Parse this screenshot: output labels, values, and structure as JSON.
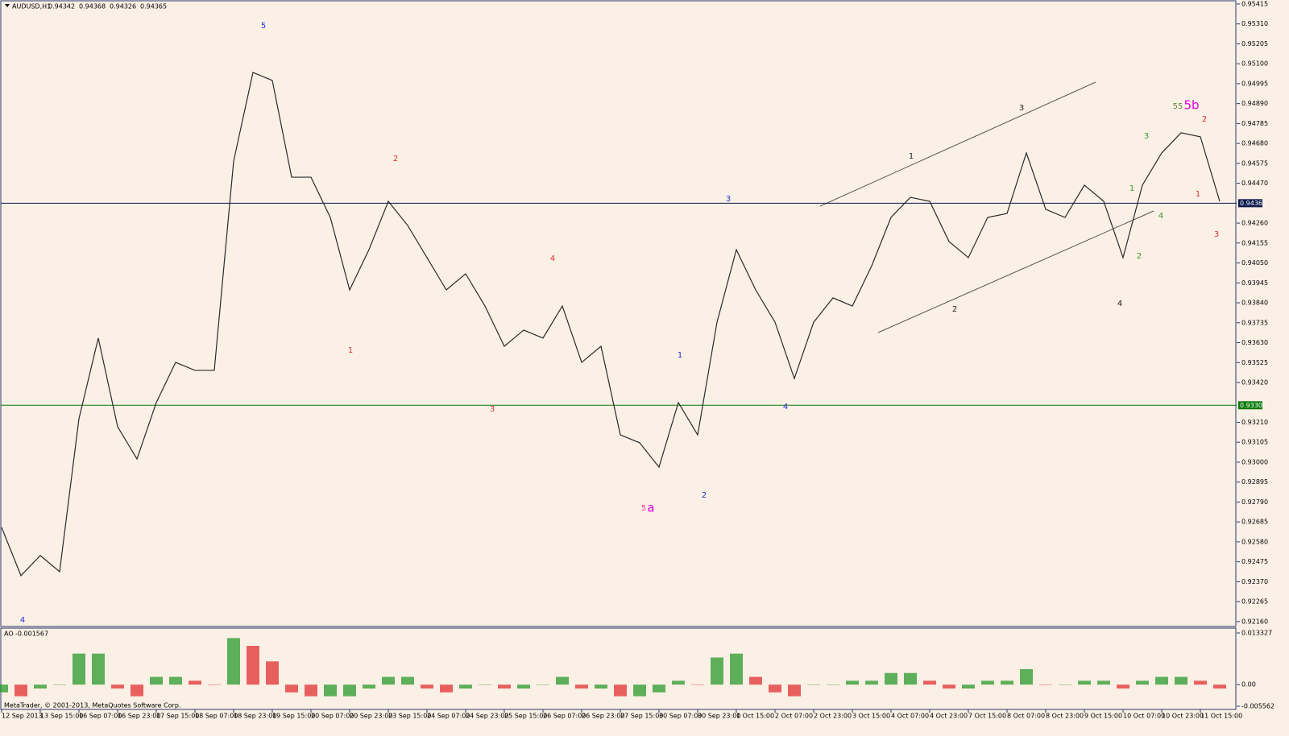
{
  "chart_data": {
    "type": "line",
    "symbol": "AUDUSD,H1",
    "ohlc": [
      0.94342,
      0.94368,
      0.94326,
      0.94365
    ],
    "footer": "MetaTrader, © 2001-2013, MetaQuotes Software Corp.",
    "color": "#2a2a2a",
    "categories": [
      "12 Sep 2013",
      null,
      "13 Sep 15:00",
      null,
      "16 Sep 07:00",
      null,
      "16 Sep 23:00",
      null,
      "17 Sep 15:00",
      null,
      "18 Sep 07:00",
      null,
      "18 Sep 23:00",
      null,
      "19 Sep 15:00",
      null,
      "20 Sep 07:00",
      null,
      "20 Sep 23:00",
      null,
      "23 Sep 15:00",
      null,
      "24 Sep 07:00",
      null,
      "24 Sep 23:00",
      null,
      "25 Sep 15:00",
      null,
      "26 Sep 07:00",
      null,
      "26 Sep 23:00",
      null,
      "27 Sep 15:00",
      null,
      "30 Sep 07:00",
      null,
      "30 Sep 23:00",
      null,
      "1 Oct 15:00",
      null,
      "2 Oct 07:00",
      null,
      "2 Oct 23:00",
      null,
      "3 Oct 15:00",
      null,
      "4 Oct 07:00",
      null,
      "4 Oct 23:00",
      null,
      "7 Oct 15:00",
      null,
      "8 Oct 07:00",
      null,
      "8 Oct 23:00",
      null,
      "9 Oct 15:00",
      null,
      "10 Oct 07:00",
      null,
      "10 Oct 23:00",
      null,
      "11 Oct 15:00",
      null
    ],
    "values": [
      0.92656,
      0.92402,
      0.92508,
      0.92423,
      0.93229,
      0.93654,
      0.93187,
      0.93017,
      0.93314,
      0.93526,
      0.93484,
      0.93484,
      0.94587,
      0.95054,
      0.95012,
      0.94502,
      0.94502,
      0.9429,
      0.93908,
      0.9412,
      0.94375,
      0.94248,
      0.94078,
      0.93908,
      0.93993,
      0.93823,
      0.93611,
      0.93696,
      0.93654,
      0.93823,
      0.93526,
      0.93611,
      0.93144,
      0.93102,
      0.92974,
      0.93314,
      0.93144,
      0.93738,
      0.9412,
      0.93908,
      0.93738,
      0.93441,
      0.93738,
      0.93866,
      0.93823,
      0.94035,
      0.9429,
      0.94396,
      0.94375,
      0.94163,
      0.94078,
      0.9429,
      0.94311,
      0.9463,
      0.94333,
      0.9429,
      0.9446,
      0.94375,
      0.94078,
      0.9446,
      0.9463,
      0.94736,
      0.94715,
      0.94375
    ],
    "ylim": [
      0.92134,
      0.95436
    ],
    "yticks": [
      {
        "value": 0.95415,
        "label": "0.95415"
      },
      {
        "value": 0.9531,
        "label": "0.95310"
      },
      {
        "value": 0.95205,
        "label": "0.95205"
      },
      {
        "value": 0.951,
        "label": "0.95100"
      },
      {
        "value": 0.94995,
        "label": "0.94995"
      },
      {
        "value": 0.9489,
        "label": "0.94890"
      },
      {
        "value": 0.94785,
        "label": "0.94785"
      },
      {
        "value": 0.9468,
        "label": "0.94680"
      },
      {
        "value": 0.94575,
        "label": "0.94575"
      },
      {
        "value": 0.9447,
        "label": "0.94470"
      },
      {
        "value": 0.9426,
        "label": "0.94260"
      },
      {
        "value": 0.94155,
        "label": "0.94155"
      },
      {
        "value": 0.9405,
        "label": "0.94050"
      },
      {
        "value": 0.93945,
        "label": "0.93945"
      },
      {
        "value": 0.9384,
        "label": "0.93840"
      },
      {
        "value": 0.93735,
        "label": "0.93735"
      },
      {
        "value": 0.9363,
        "label": "0.93630"
      },
      {
        "value": 0.93525,
        "label": "0.93525"
      },
      {
        "value": 0.9342,
        "label": "0.93420"
      },
      {
        "value": 0.9321,
        "label": "0.93210"
      },
      {
        "value": 0.93105,
        "label": "0.93105"
      },
      {
        "value": 0.93,
        "label": "0.93000"
      },
      {
        "value": 0.92895,
        "label": "0.92895"
      },
      {
        "value": 0.9279,
        "label": "0.92790"
      },
      {
        "value": 0.92685,
        "label": "0.92685"
      },
      {
        "value": 0.9258,
        "label": "0.92580"
      },
      {
        "value": 0.92475,
        "label": "0.92475"
      },
      {
        "value": 0.9237,
        "label": "0.92370"
      },
      {
        "value": 0.92265,
        "label": "0.92265"
      },
      {
        "value": 0.9216,
        "label": "0.92160"
      }
    ],
    "hlines": [
      {
        "value": 0.94365,
        "label": "0.94365",
        "color": "#0b1a4a"
      },
      {
        "value": 0.933,
        "label": "0.93300",
        "color": "#0a7a0a"
      }
    ],
    "annotations": [
      {
        "text": "4",
        "color": "#2030d0"
      },
      {
        "text": "5",
        "color": "#2030d0"
      },
      {
        "text": "1",
        "color": "#e03030"
      },
      {
        "text": "2",
        "color": "#e03030"
      },
      {
        "text": "4",
        "color": "#e03030"
      },
      {
        "text": "3",
        "color": "#e03030"
      },
      {
        "text": "5",
        "color": "#ff3090"
      },
      {
        "text": "a",
        "color": "#e000e0"
      },
      {
        "text": "1",
        "color": "#2030d0"
      },
      {
        "text": "2",
        "color": "#2030d0"
      },
      {
        "text": "3",
        "color": "#2030d0"
      },
      {
        "text": "4",
        "color": "#2030d0"
      },
      {
        "text": "1",
        "color": "#202020"
      },
      {
        "text": "3",
        "color": "#202020"
      },
      {
        "text": "2",
        "color": "#202020"
      },
      {
        "text": "4",
        "color": "#202020"
      },
      {
        "text": "55",
        "color": "#5a8a3a"
      },
      {
        "text": "5b",
        "color": "#e000e0"
      },
      {
        "text": "2",
        "color": "#e03030"
      },
      {
        "text": "1",
        "color": "#e03030"
      },
      {
        "text": "3",
        "color": "#e03030"
      },
      {
        "text": "3",
        "color": "#3a9a2a"
      },
      {
        "text": "1",
        "color": "#3a9a2a"
      },
      {
        "text": "4",
        "color": "#3a9a2a"
      },
      {
        "text": "2",
        "color": "#3a9a2a"
      }
    ],
    "indicator": {
      "name": "AO",
      "value": -0.001567,
      "up_color": "#2a9a2a",
      "down_color": "#e03030",
      "values": [
        -0.002,
        -0.003,
        -0.001,
        0,
        0.008,
        0.008,
        -0.001,
        -0.003,
        0.002,
        0.002,
        0.001,
        0,
        0.012,
        0.01,
        0.006,
        -0.002,
        -0.003,
        -0.003,
        -0.003,
        -0.001,
        0.002,
        0.002,
        -0.001,
        -0.002,
        -0.001,
        0,
        -0.001,
        -0.001,
        0,
        0.002,
        -0.001,
        -0.001,
        -0.003,
        -0.003,
        -0.002,
        0.001,
        0,
        0.007,
        0.008,
        0.002,
        -0.002,
        -0.003,
        0,
        0,
        0.001,
        0.001,
        0.003,
        0.003,
        0.001,
        -0.001,
        -0.001,
        0.001,
        0.001,
        0.004,
        0,
        0,
        0.001,
        0.001,
        -0.001,
        0.001,
        0.002,
        0.002,
        0.001,
        -0.001
      ],
      "ylim": [
        -0.005562,
        0.013327
      ],
      "yticks": [
        0.013327,
        {
          "value": 0,
          "label": "0.00"
        },
        -0.005562
      ]
    }
  }
}
